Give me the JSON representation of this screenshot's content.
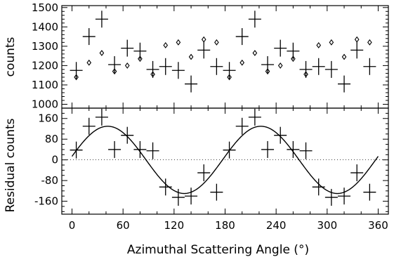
{
  "chart_data": [
    {
      "type": "scatter",
      "panel": "top",
      "ylabel": "counts",
      "xlim": [
        -12,
        372
      ],
      "ylim": [
        980,
        1510
      ],
      "y_ticks": [
        1000,
        1100,
        1200,
        1300,
        1400,
        1500
      ],
      "series": [
        {
          "marker": "cross",
          "x": [
            5,
            20,
            35,
            50,
            65,
            80,
            95,
            110,
            125,
            140,
            155,
            170,
            185,
            200,
            215,
            230,
            245,
            260,
            275,
            290,
            305,
            320,
            335,
            350
          ],
          "y": [
            1175,
            1350,
            1440,
            1205,
            1290,
            1275,
            1180,
            1195,
            1175,
            1105,
            1280,
            1195,
            1175,
            1350,
            1440,
            1205,
            1290,
            1275,
            1180,
            1195,
            1180,
            1105,
            1280,
            1195
          ]
        },
        {
          "marker": "diamond",
          "x": [
            5,
            20,
            35,
            50,
            65,
            80,
            95,
            110,
            125,
            140,
            155,
            170,
            185,
            200,
            215,
            230,
            245,
            260,
            275,
            290,
            305,
            320,
            335,
            350
          ],
          "y": [
            1140,
            1215,
            1265,
            1170,
            1200,
            1235,
            1155,
            1305,
            1320,
            1245,
            1335,
            1320,
            1140,
            1215,
            1265,
            1170,
            1200,
            1235,
            1155,
            1305,
            1320,
            1245,
            1335,
            1320
          ]
        }
      ]
    },
    {
      "type": "scatter",
      "panel": "bottom",
      "xlabel": "Azimuthal Scattering Angle (°)",
      "ylabel": "Residual counts",
      "xlim": [
        -12,
        372
      ],
      "ylim": [
        -210,
        200
      ],
      "x_ticks": [
        0,
        60,
        120,
        180,
        240,
        300,
        360
      ],
      "y_ticks": [
        160,
        80,
        0,
        -80,
        -160
      ],
      "series": [
        {
          "marker": "cross",
          "x": [
            5,
            20,
            35,
            50,
            65,
            80,
            95,
            110,
            125,
            140,
            155,
            170,
            185,
            200,
            215,
            230,
            245,
            260,
            275,
            290,
            305,
            320,
            335,
            350
          ],
          "y": [
            38,
            130,
            165,
            40,
            95,
            40,
            35,
            -105,
            -145,
            -140,
            -50,
            -125,
            38,
            130,
            165,
            40,
            95,
            40,
            35,
            -105,
            -145,
            -140,
            -50,
            -125
          ]
        }
      ],
      "fit": {
        "type": "sinusoid",
        "amplitude": 130,
        "period": 180,
        "peak_at": 42,
        "x_range": [
          0,
          360
        ]
      },
      "zero_line": "dotted"
    }
  ]
}
